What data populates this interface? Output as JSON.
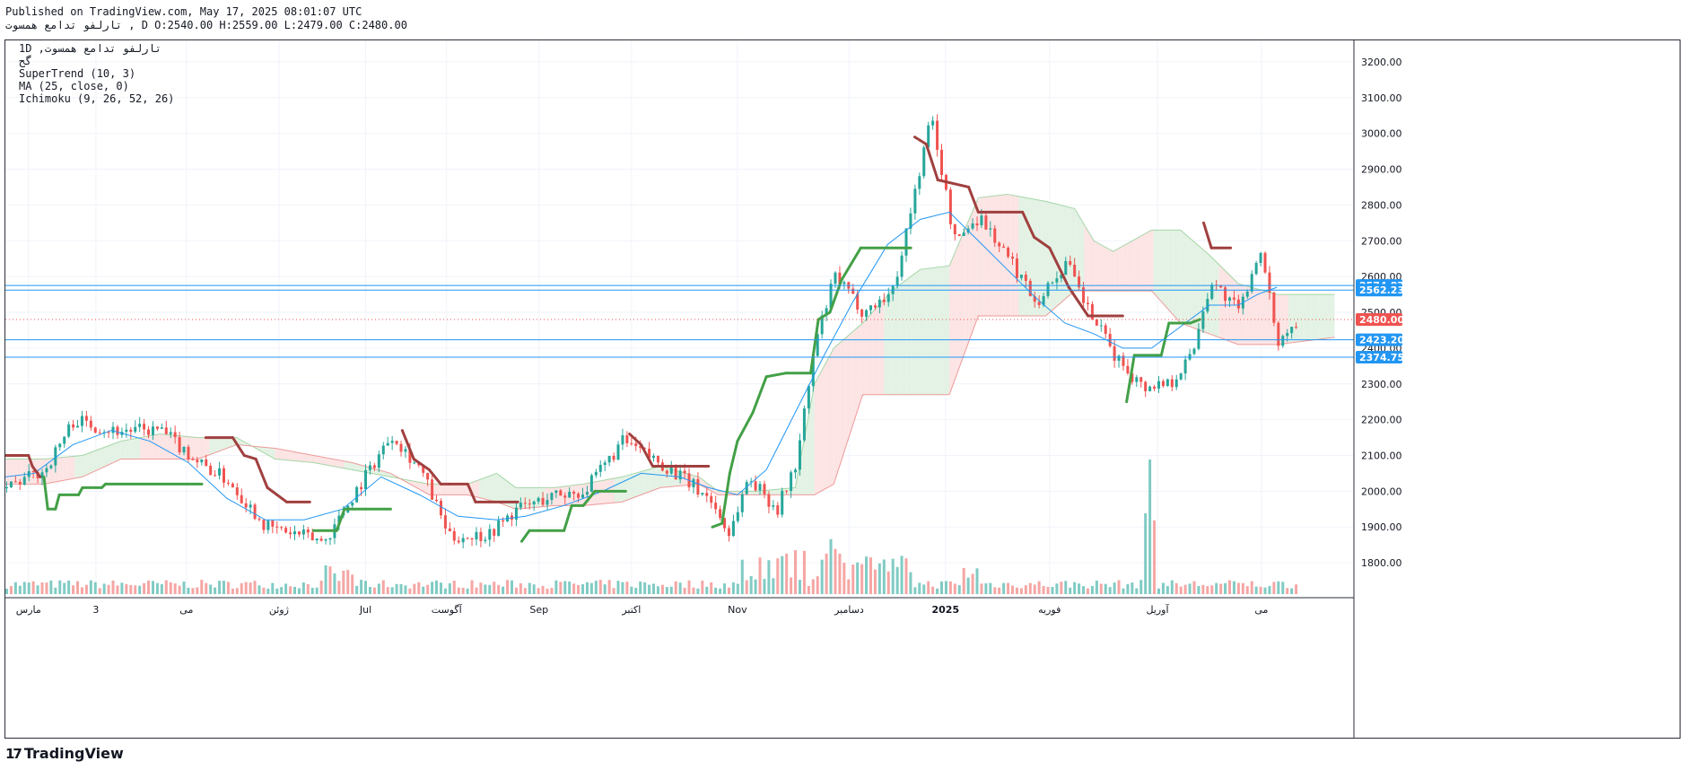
{
  "header": {
    "published": "Published on TradingView.com, May 17, 2025 08:01:07 UTC",
    "ohlc_line": "تارلفو تدامع همسوت , D O:2540.00 H:2559.00 L:2479.00 C:2480.00"
  },
  "legend": {
    "line1": "1D ,تارلفو تدامع همسوت",
    "line2": "گح",
    "line3": "SuperTrend (10, 3)",
    "line4": "MA (25, close, 0)",
    "line5": "Ichimoku (9, 26, 52, 26)"
  },
  "footer": {
    "brand": "TradingView"
  },
  "chart_data": {
    "type": "candlestick",
    "title": "",
    "ylim": [
      1710,
      3260
    ],
    "yticks": [
      1800,
      1900,
      2000,
      2100,
      2200,
      2300,
      2400,
      2500,
      2600,
      2700,
      2800,
      2900,
      3000,
      3100,
      3200
    ],
    "ytick_labels": [
      "1800.00",
      "1900.00",
      "2000.00",
      "2100.00",
      "2200.00",
      "2300.00",
      "2400.00",
      "2500.00",
      "2600.00",
      "2700.00",
      "2800.00",
      "2900.00",
      "3000.00",
      "3100.00",
      "3200.00"
    ],
    "xticks": [
      {
        "label": "مارس",
        "x": 12
      },
      {
        "label": "3",
        "x": 47
      },
      {
        "label": "می",
        "x": 94
      },
      {
        "label": "ژوئن",
        "x": 142
      },
      {
        "label": "Jul",
        "x": 187
      },
      {
        "label": "آگوست",
        "x": 229
      },
      {
        "label": "Sep",
        "x": 277
      },
      {
        "label": "اکتبر",
        "x": 325
      },
      {
        "label": "Nov",
        "x": 380
      },
      {
        "label": "دسامبر",
        "x": 438
      },
      {
        "label": "2025",
        "x": 488
      },
      {
        "label": "فوریه",
        "x": 542
      },
      {
        "label": "آوریل",
        "x": 598
      },
      {
        "label": "می",
        "x": 652
      }
    ],
    "n_bars": 700,
    "last_price": 2480,
    "last_price_label": "2480.00",
    "colors": {
      "up": "#26a69a",
      "down": "#ef5350",
      "ma": "#2196f3",
      "st_up": "#43a047",
      "st_down": "#a0403f",
      "cloud_up": "#e3f2e4",
      "cloud_down": "#fce4e4",
      "hline": "#2196f3",
      "vol_up": "#80cbc4",
      "vol_down": "#f5a6a4"
    },
    "horizontal_lines": [
      {
        "value": 2574.87,
        "label": "2574.87"
      },
      {
        "value": 2562.23,
        "label": "2562.23"
      },
      {
        "value": 2423.2,
        "label": "2423.20"
      },
      {
        "value": 2374.75,
        "label": "2374.75"
      }
    ],
    "price_path": [
      [
        0,
        2010
      ],
      [
        20,
        2060
      ],
      [
        35,
        2200
      ],
      [
        55,
        2170
      ],
      [
        80,
        2170
      ],
      [
        100,
        2080
      ],
      [
        115,
        2030
      ],
      [
        135,
        1900
      ],
      [
        165,
        1860
      ],
      [
        180,
        1990
      ],
      [
        200,
        2160
      ],
      [
        215,
        2060
      ],
      [
        230,
        1870
      ],
      [
        250,
        1880
      ],
      [
        265,
        1950
      ],
      [
        285,
        1990
      ],
      [
        300,
        2000
      ],
      [
        320,
        2140
      ],
      [
        345,
        2060
      ],
      [
        365,
        1980
      ],
      [
        375,
        1880
      ],
      [
        385,
        2040
      ],
      [
        400,
        1950
      ],
      [
        410,
        2080
      ],
      [
        420,
        2420
      ],
      [
        430,
        2600
      ],
      [
        445,
        2500
      ],
      [
        460,
        2560
      ],
      [
        470,
        2800
      ],
      [
        480,
        3050
      ],
      [
        492,
        2700
      ],
      [
        505,
        2770
      ],
      [
        520,
        2650
      ],
      [
        535,
        2530
      ],
      [
        550,
        2640
      ],
      [
        560,
        2520
      ],
      [
        575,
        2380
      ],
      [
        590,
        2290
      ],
      [
        605,
        2310
      ],
      [
        615,
        2380
      ],
      [
        625,
        2590
      ],
      [
        640,
        2500
      ],
      [
        650,
        2680
      ],
      [
        660,
        2420
      ],
      [
        670,
        2480
      ]
    ],
    "supertrend_path": [
      [
        0,
        2100,
        "d"
      ],
      [
        12,
        2100,
        "d"
      ],
      [
        14,
        2070,
        "d"
      ],
      [
        18,
        2040,
        "d"
      ],
      [
        20,
        2040,
        "u"
      ],
      [
        22,
        1950,
        "u"
      ],
      [
        26,
        1950,
        "u"
      ],
      [
        28,
        1990,
        "u"
      ],
      [
        38,
        1990,
        "u"
      ],
      [
        40,
        2010,
        "u"
      ],
      [
        50,
        2010,
        "u"
      ],
      [
        52,
        2020,
        "u"
      ],
      [
        102,
        2020,
        "u"
      ],
      [
        104,
        2150,
        "d"
      ],
      [
        118,
        2150,
        "d"
      ],
      [
        124,
        2100,
        "d"
      ],
      [
        130,
        2090,
        "d"
      ],
      [
        136,
        2010,
        "d"
      ],
      [
        146,
        1970,
        "d"
      ],
      [
        158,
        1970,
        "d"
      ],
      [
        160,
        1890,
        "u"
      ],
      [
        172,
        1890,
        "u"
      ],
      [
        176,
        1950,
        "u"
      ],
      [
        200,
        1950,
        "u"
      ],
      [
        206,
        2170,
        "d"
      ],
      [
        212,
        2090,
        "d"
      ],
      [
        220,
        2060,
        "d"
      ],
      [
        226,
        2020,
        "d"
      ],
      [
        230,
        2020,
        "d"
      ],
      [
        240,
        2020,
        "d"
      ],
      [
        244,
        1970,
        "d"
      ],
      [
        266,
        1970,
        "d"
      ],
      [
        268,
        1860,
        "u"
      ],
      [
        272,
        1890,
        "u"
      ],
      [
        290,
        1890,
        "u"
      ],
      [
        294,
        1960,
        "u"
      ],
      [
        300,
        1960,
        "u"
      ],
      [
        306,
        2000,
        "u"
      ],
      [
        322,
        2000,
        "u"
      ],
      [
        324,
        2160,
        "d"
      ],
      [
        330,
        2130,
        "d"
      ],
      [
        336,
        2070,
        "d"
      ],
      [
        365,
        2070,
        "d"
      ],
      [
        367,
        1900,
        "u"
      ],
      [
        372,
        1910,
        "u"
      ],
      [
        376,
        2050,
        "u"
      ],
      [
        380,
        2140,
        "u"
      ],
      [
        388,
        2220,
        "u"
      ],
      [
        395,
        2320,
        "u"
      ],
      [
        405,
        2330,
        "u"
      ],
      [
        418,
        2330,
        "u"
      ],
      [
        422,
        2480,
        "u"
      ],
      [
        428,
        2500,
        "u"
      ],
      [
        434,
        2590,
        "u"
      ],
      [
        444,
        2680,
        "u"
      ],
      [
        470,
        2680,
        "u"
      ],
      [
        472,
        2990,
        "d"
      ],
      [
        478,
        2970,
        "d"
      ],
      [
        484,
        2870,
        "d"
      ],
      [
        500,
        2850,
        "d"
      ],
      [
        505,
        2780,
        "d"
      ],
      [
        528,
        2780,
        "d"
      ],
      [
        534,
        2710,
        "d"
      ],
      [
        542,
        2680,
        "d"
      ],
      [
        552,
        2570,
        "d"
      ],
      [
        562,
        2490,
        "d"
      ],
      [
        580,
        2490,
        "d"
      ],
      [
        582,
        2250,
        "u"
      ],
      [
        586,
        2380,
        "u"
      ],
      [
        600,
        2380,
        "u"
      ],
      [
        604,
        2470,
        "u"
      ],
      [
        615,
        2470,
        "u"
      ],
      [
        620,
        2480,
        "u"
      ],
      [
        622,
        2750,
        "d"
      ],
      [
        626,
        2680,
        "d"
      ],
      [
        636,
        2680,
        "d"
      ]
    ],
    "ma_path": [
      [
        0,
        2040
      ],
      [
        15,
        2050
      ],
      [
        35,
        2130
      ],
      [
        55,
        2170
      ],
      [
        75,
        2140
      ],
      [
        95,
        2080
      ],
      [
        115,
        1980
      ],
      [
        135,
        1920
      ],
      [
        155,
        1920
      ],
      [
        175,
        1950
      ],
      [
        195,
        2040
      ],
      [
        215,
        1990
      ],
      [
        235,
        1930
      ],
      [
        255,
        1920
      ],
      [
        270,
        1930
      ],
      [
        290,
        1960
      ],
      [
        310,
        2000
      ],
      [
        330,
        2050
      ],
      [
        350,
        2040
      ],
      [
        365,
        2010
      ],
      [
        380,
        1990
      ],
      [
        395,
        2060
      ],
      [
        410,
        2220
      ],
      [
        425,
        2380
      ],
      [
        440,
        2530
      ],
      [
        458,
        2690
      ],
      [
        475,
        2760
      ],
      [
        490,
        2780
      ],
      [
        505,
        2700
      ],
      [
        520,
        2620
      ],
      [
        535,
        2540
      ],
      [
        550,
        2470
      ],
      [
        565,
        2440
      ],
      [
        580,
        2400
      ],
      [
        595,
        2400
      ],
      [
        610,
        2460
      ],
      [
        625,
        2520
      ],
      [
        640,
        2520
      ],
      [
        650,
        2550
      ],
      [
        660,
        2570
      ]
    ],
    "cloud_upper": [
      [
        0,
        2090
      ],
      [
        20,
        2090
      ],
      [
        40,
        2100
      ],
      [
        60,
        2140
      ],
      [
        80,
        2160
      ],
      [
        100,
        2150
      ],
      [
        120,
        2150
      ],
      [
        140,
        2090
      ],
      [
        160,
        2080
      ],
      [
        180,
        2060
      ],
      [
        200,
        2040
      ],
      [
        220,
        2020
      ],
      [
        240,
        2020
      ],
      [
        255,
        2050
      ],
      [
        265,
        2010
      ],
      [
        285,
        2010
      ],
      [
        300,
        2020
      ],
      [
        320,
        2040
      ],
      [
        340,
        2070
      ],
      [
        360,
        2040
      ],
      [
        370,
        2000
      ],
      [
        390,
        2000
      ],
      [
        410,
        2010
      ],
      [
        420,
        2300
      ],
      [
        430,
        2400
      ],
      [
        445,
        2470
      ],
      [
        460,
        2560
      ],
      [
        475,
        2620
      ],
      [
        490,
        2630
      ],
      [
        505,
        2820
      ],
      [
        520,
        2830
      ],
      [
        540,
        2810
      ],
      [
        555,
        2790
      ],
      [
        565,
        2700
      ],
      [
        575,
        2670
      ],
      [
        595,
        2730
      ],
      [
        610,
        2730
      ],
      [
        625,
        2660
      ],
      [
        640,
        2580
      ],
      [
        660,
        2550
      ],
      [
        690,
        2550
      ]
    ],
    "cloud_lower": [
      [
        0,
        2020
      ],
      [
        20,
        2020
      ],
      [
        40,
        2040
      ],
      [
        60,
        2090
      ],
      [
        80,
        2090
      ],
      [
        100,
        2090
      ],
      [
        120,
        2130
      ],
      [
        140,
        2120
      ],
      [
        160,
        2100
      ],
      [
        180,
        2080
      ],
      [
        200,
        2050
      ],
      [
        220,
        1990
      ],
      [
        240,
        1990
      ],
      [
        255,
        1970
      ],
      [
        265,
        1950
      ],
      [
        285,
        1960
      ],
      [
        300,
        1960
      ],
      [
        320,
        1970
      ],
      [
        340,
        2010
      ],
      [
        360,
        2020
      ],
      [
        370,
        1990
      ],
      [
        390,
        1990
      ],
      [
        410,
        1990
      ],
      [
        420,
        1990
      ],
      [
        430,
        2020
      ],
      [
        445,
        2270
      ],
      [
        460,
        2270
      ],
      [
        475,
        2270
      ],
      [
        490,
        2270
      ],
      [
        505,
        2490
      ],
      [
        520,
        2490
      ],
      [
        540,
        2490
      ],
      [
        555,
        2560
      ],
      [
        565,
        2560
      ],
      [
        575,
        2560
      ],
      [
        595,
        2560
      ],
      [
        610,
        2470
      ],
      [
        625,
        2440
      ],
      [
        640,
        2410
      ],
      [
        660,
        2410
      ],
      [
        690,
        2430
      ]
    ]
  }
}
